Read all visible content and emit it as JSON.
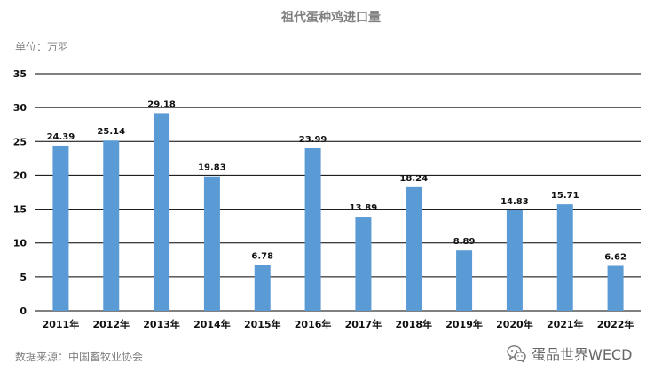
{
  "chart_data": {
    "type": "bar",
    "title": "祖代蛋种鸡进口量",
    "unit_label": "单位：万羽",
    "categories": [
      "2011年",
      "2012年",
      "2013年",
      "2014年",
      "2015年",
      "2016年",
      "2017年",
      "2018年",
      "2019年",
      "2020年",
      "2021年",
      "2022年"
    ],
    "values": [
      24.39,
      25.14,
      29.18,
      19.83,
      6.78,
      23.99,
      13.89,
      18.24,
      8.89,
      14.83,
      15.71,
      6.62
    ],
    "data_labels": [
      "24.39",
      "25.14",
      "29.18",
      "19.83",
      "6.78",
      "23.99",
      "13.89",
      "18.24",
      "8.89",
      "14.83",
      "15.71",
      "6.62"
    ],
    "ylim": [
      0,
      35
    ],
    "yticks": [
      "0",
      "5",
      "10",
      "15",
      "20",
      "25",
      "30",
      "35"
    ],
    "grid": true,
    "bar_color": "#5b9bd5",
    "gridline_color": "#000000"
  },
  "source_text": "数据来源：中国畜牧业协会",
  "brand": {
    "name": "蛋品世界WECD",
    "icon": "wechat-icon"
  }
}
